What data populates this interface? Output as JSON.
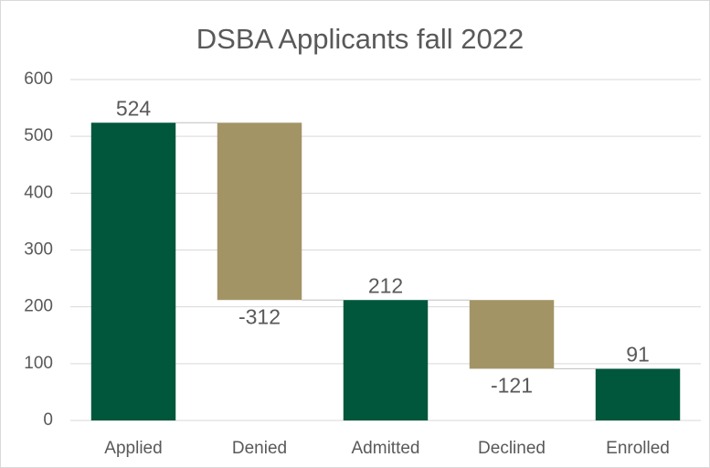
{
  "chart_data": {
    "type": "waterfall",
    "title": "DSBA Applicants fall 2022",
    "categories": [
      "Applied",
      "Denied",
      "Admitted",
      "Declined",
      "Enrolled"
    ],
    "values": [
      524,
      -312,
      212,
      -121,
      91
    ],
    "colors": [
      "#00573c",
      "#a39466",
      "#00573c",
      "#a39466",
      "#00573c"
    ],
    "ylim": [
      0,
      600
    ],
    "yticks": [
      0,
      100,
      200,
      300,
      400,
      500,
      600
    ],
    "grid": true
  }
}
